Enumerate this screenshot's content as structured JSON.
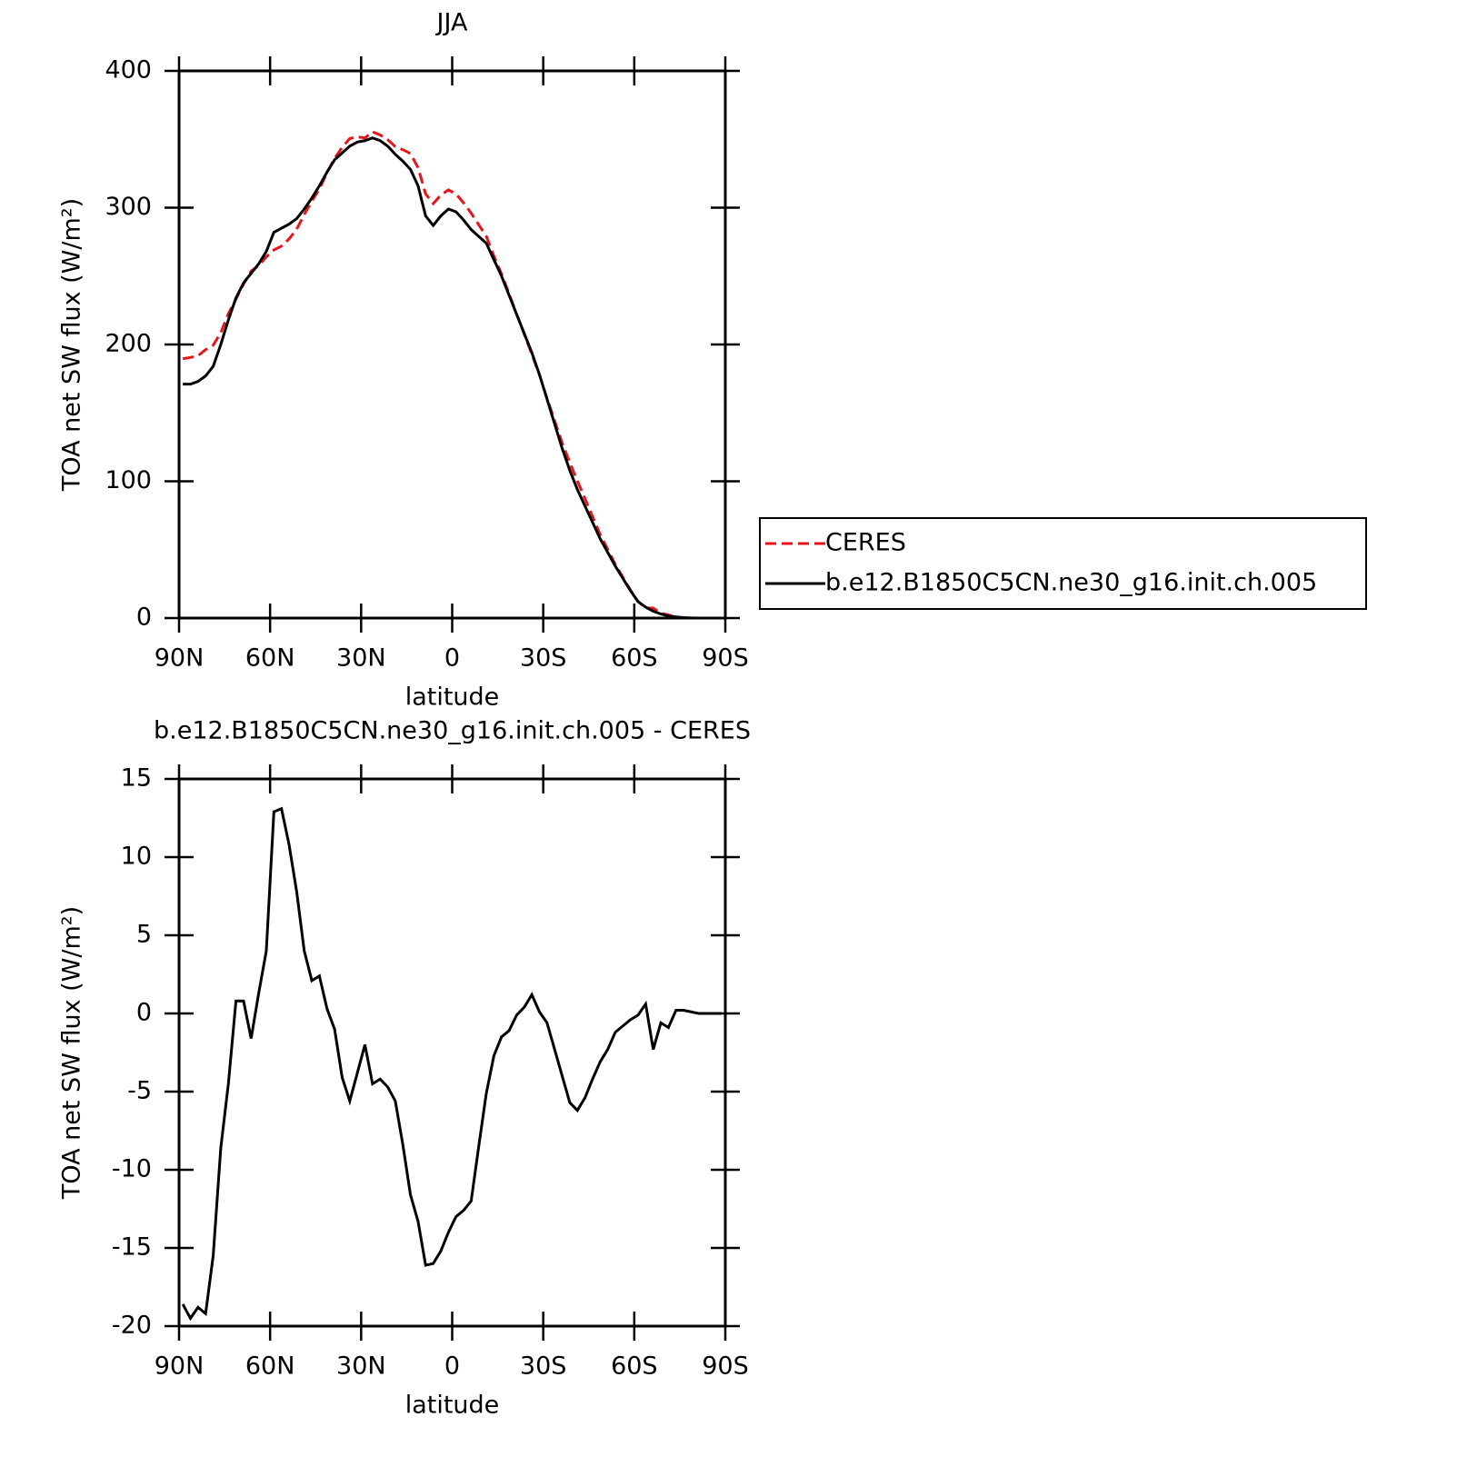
{
  "chart_data": [
    {
      "type": "line",
      "title": "JJA",
      "xlabel": "latitude",
      "ylabel": "TOA net SW flux (W/m²)",
      "x": [
        88.75,
        86.25,
        83.75,
        81.25,
        78.75,
        76.25,
        73.75,
        71.25,
        68.75,
        66.25,
        63.75,
        61.25,
        58.75,
        56.25,
        53.75,
        51.25,
        48.75,
        46.25,
        43.75,
        41.25,
        38.75,
        36.25,
        33.75,
        31.25,
        28.75,
        26.25,
        23.75,
        21.25,
        18.75,
        16.25,
        13.75,
        11.25,
        8.75,
        6.25,
        3.75,
        1.25,
        -1.25,
        -3.75,
        -6.25,
        -8.75,
        -11.25,
        -13.75,
        -16.25,
        -18.75,
        -21.25,
        -23.75,
        -26.25,
        -28.75,
        -31.25,
        -33.75,
        -36.25,
        -38.75,
        -41.25,
        -43.75,
        -46.25,
        -48.75,
        -51.25,
        -53.75,
        -56.25,
        -58.75,
        -61.25,
        -63.75,
        -66.25,
        -68.75,
        -71.25,
        -73.75,
        -76.25,
        -78.75,
        -81.25,
        -83.75,
        -86.25,
        -88.75
      ],
      "series": [
        {
          "name": "CERES",
          "color": "#e8141c",
          "line_style": "dashed",
          "values": [
            189.6,
            190.5,
            191.8,
            196.2,
            199.5,
            208.6,
            222.5,
            233.2,
            244.2,
            253.6,
            257.7,
            264,
            269.1,
            271.9,
            277.2,
            284.2,
            295,
            304.9,
            313.6,
            325.7,
            336,
            344.1,
            350.6,
            351.8,
            351,
            355.5,
            353.2,
            349.7,
            344.6,
            342.4,
            339.6,
            329.3,
            310.1,
            303,
            309.2,
            313,
            310,
            303.6,
            296,
            287.5,
            279.1,
            264.7,
            251.5,
            237.1,
            222.1,
            207.6,
            192.8,
            177.9,
            160.6,
            144.3,
            128,
            113.7,
            100.2,
            87.4,
            74.2,
            61.1,
            50.3,
            39.2,
            29.8,
            20.4,
            12.1,
            7.4,
            7.3,
            3.6,
            2.4,
            0.6,
            0.1,
            0,
            0,
            0,
            0,
            0
          ]
        },
        {
          "name": "b.e12.B1850C5CN.ne30_g16.init.ch.005",
          "color": "#000000",
          "line_style": "solid",
          "values": [
            171,
            171,
            173,
            177,
            184,
            200,
            218,
            234,
            245,
            252,
            259,
            268,
            282,
            285,
            288,
            292,
            299,
            307,
            316,
            326,
            335,
            340,
            345,
            348,
            349,
            351,
            349,
            345,
            339,
            334,
            328,
            316,
            294,
            287,
            294,
            299,
            297,
            291,
            284,
            279,
            274,
            262,
            250,
            236,
            222,
            208,
            194,
            178,
            160,
            142,
            124,
            108,
            94,
            82,
            70,
            58,
            48,
            38,
            29,
            20,
            12,
            8,
            5,
            3,
            1.5,
            0.8,
            0.3,
            0.1,
            0,
            0,
            0,
            0
          ]
        }
      ],
      "xlim": [
        90,
        -90
      ],
      "xticks": [
        {
          "value": 90,
          "label": "90N"
        },
        {
          "value": 60,
          "label": "60N"
        },
        {
          "value": 30,
          "label": "30N"
        },
        0,
        {
          "value": -30,
          "label": "30S"
        },
        {
          "value": -60,
          "label": "60S"
        },
        {
          "value": -90,
          "label": "90S"
        }
      ],
      "ylim": [
        0,
        400
      ],
      "yticks": [
        0,
        100,
        200,
        300,
        400
      ],
      "legend": "right"
    },
    {
      "type": "line",
      "title": "b.e12.B1850C5CN.ne30_g16.init.ch.005 - CERES",
      "xlabel": "latitude",
      "ylabel": "TOA net SW flux (W/m²)",
      "x": [
        88.75,
        86.25,
        83.75,
        81.25,
        78.75,
        76.25,
        73.75,
        71.25,
        68.75,
        66.25,
        63.75,
        61.25,
        58.75,
        56.25,
        53.75,
        51.25,
        48.75,
        46.25,
        43.75,
        41.25,
        38.75,
        36.25,
        33.75,
        31.25,
        28.75,
        26.25,
        23.75,
        21.25,
        18.75,
        16.25,
        13.75,
        11.25,
        8.75,
        6.25,
        3.75,
        1.25,
        -1.25,
        -3.75,
        -6.25,
        -8.75,
        -11.25,
        -13.75,
        -16.25,
        -18.75,
        -21.25,
        -23.75,
        -26.25,
        -28.75,
        -31.25,
        -33.75,
        -36.25,
        -38.75,
        -41.25,
        -43.75,
        -46.25,
        -48.75,
        -51.25,
        -53.75,
        -56.25,
        -58.75,
        -61.25,
        -63.75,
        -66.25,
        -68.75,
        -71.25,
        -73.75,
        -76.25,
        -78.75,
        -81.25,
        -83.75,
        -86.25,
        -88.75
      ],
      "series": [
        {
          "color": "#000000",
          "line_style": "solid",
          "values": [
            -18.6,
            -19.5,
            -18.8,
            -19.2,
            -15.5,
            -8.6,
            -4.5,
            0.8,
            0.8,
            -1.6,
            1.3,
            4,
            12.9,
            13.1,
            10.8,
            7.8,
            4,
            2.1,
            2.4,
            0.3,
            -1,
            -4.1,
            -5.6,
            -3.8,
            -2,
            -4.5,
            -4.2,
            -4.7,
            -5.6,
            -8.4,
            -11.6,
            -13.3,
            -16.1,
            -16,
            -15.2,
            -14,
            -13,
            -12.6,
            -12,
            -8.5,
            -5.1,
            -2.7,
            -1.5,
            -1.1,
            -0.1,
            0.4,
            1.2,
            0.1,
            -0.6,
            -2.3,
            -4,
            -5.7,
            -6.2,
            -5.4,
            -4.2,
            -3.1,
            -2.3,
            -1.2,
            -0.8,
            -0.4,
            -0.1,
            0.6,
            -2.3,
            -0.6,
            -0.9,
            0.2,
            0.2,
            0.1,
            0,
            0,
            0,
            0
          ]
        }
      ],
      "xlim": [
        90,
        -90
      ],
      "xticks": [
        {
          "value": 90,
          "label": "90N"
        },
        {
          "value": 60,
          "label": "60N"
        },
        {
          "value": 30,
          "label": "30N"
        },
        0,
        {
          "value": -30,
          "label": "30S"
        },
        {
          "value": -60,
          "label": "60S"
        },
        {
          "value": -90,
          "label": "90S"
        }
      ],
      "ylim": [
        -20,
        15
      ],
      "yticks": [
        -20,
        -15,
        -10,
        -5,
        0,
        5,
        10,
        15
      ]
    }
  ]
}
